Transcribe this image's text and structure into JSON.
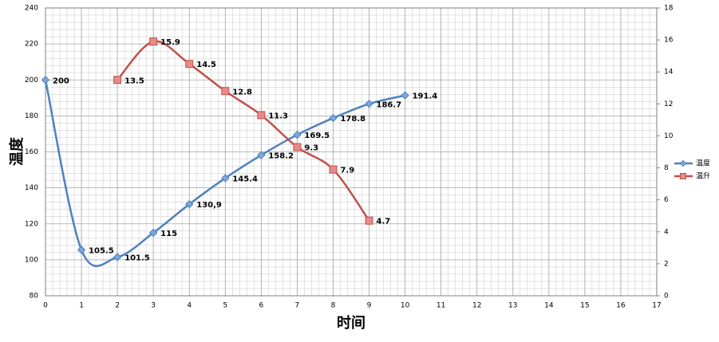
{
  "chart_data": {
    "type": "line",
    "x_label": "时间",
    "y_label": "温度",
    "xlim": [
      0,
      17
    ],
    "xticks": [
      0,
      1,
      2,
      3,
      4,
      5,
      6,
      7,
      8,
      9,
      10,
      11,
      12,
      13,
      14,
      15,
      16,
      17
    ],
    "ylim": [
      80,
      240
    ],
    "yticks": [
      80,
      100,
      120,
      140,
      160,
      180,
      200,
      220,
      240
    ],
    "y2lim": [
      0,
      18
    ],
    "y2ticks": [
      0,
      2,
      4,
      6,
      8,
      10,
      12,
      14,
      16,
      18
    ],
    "grid": true,
    "minor_grid": true,
    "smooth": true,
    "legend": "right",
    "series": [
      {
        "name": "温度",
        "color": "#4f81bd",
        "marker": "diamond",
        "x": [
          0,
          1,
          2,
          3,
          4,
          5,
          6,
          7,
          8,
          9,
          10
        ],
        "values": [
          200,
          105.5,
          101.5,
          115,
          130.9,
          145.4,
          158.2,
          169.5,
          178.8,
          186.7,
          191.4
        ],
        "value_labels": [
          "200",
          "105.5",
          "101.5",
          "115",
          "130,9",
          "145.4",
          "158.2",
          "169.5",
          "178.8",
          "186.7",
          "191.4"
        ]
      },
      {
        "name": "温升",
        "color": "#c0504d",
        "marker": "square",
        "axis": "y2",
        "x": [
          2,
          3,
          4,
          5,
          6,
          7,
          8,
          9
        ],
        "values": [
          13.5,
          15.9,
          14.5,
          12.8,
          11.3,
          9.3,
          7.9,
          4.7
        ]
      }
    ]
  }
}
